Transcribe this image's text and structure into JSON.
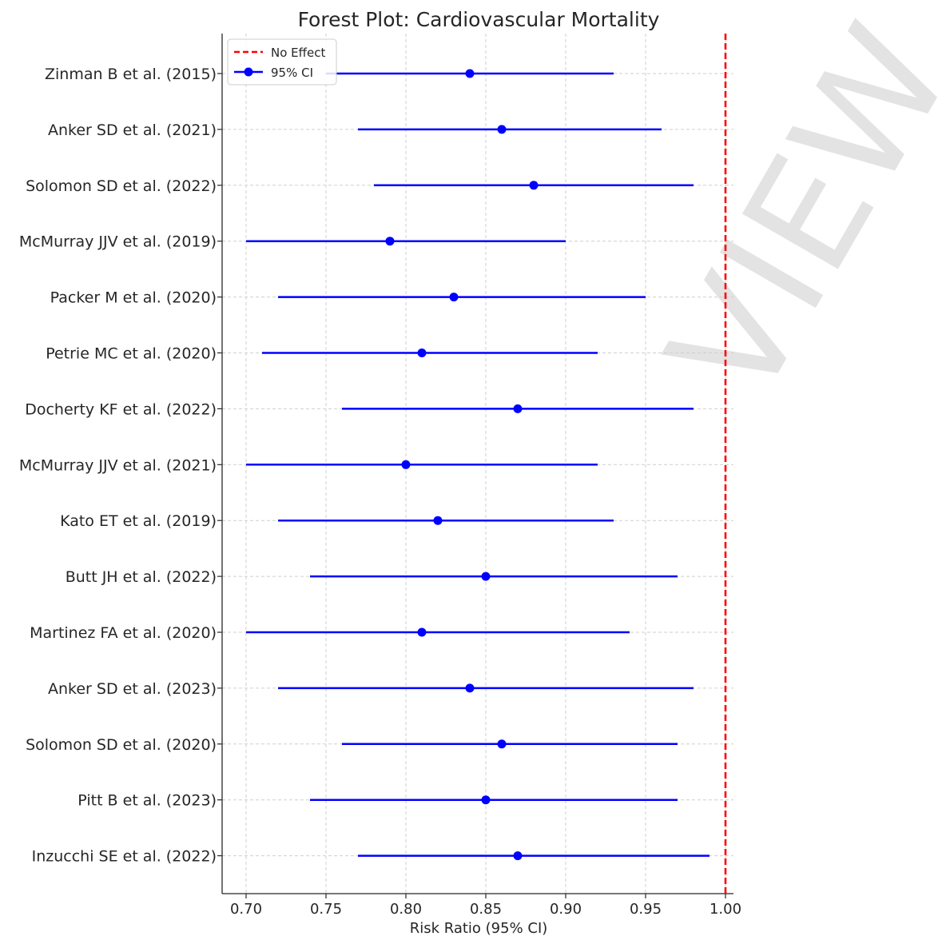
{
  "chart_data": {
    "type": "forest",
    "title": "Forest Plot: Cardiovascular Mortality",
    "xlabel": "Risk Ratio (95% CI)",
    "ylabel": "",
    "xlim": [
      0.685,
      1.005
    ],
    "xticks": [
      0.7,
      0.75,
      0.8,
      0.85,
      0.9,
      0.95,
      1.0
    ],
    "xtick_labels": [
      "0.70",
      "0.75",
      "0.80",
      "0.85",
      "0.90",
      "0.95",
      "1.00"
    ],
    "grid": true,
    "reference_line": {
      "x": 1.0,
      "label": "No Effect",
      "color": "#ff0000",
      "style": "dashed"
    },
    "legend": {
      "placement": "top-left",
      "entries": [
        {
          "label": "No Effect",
          "kind": "dashed-line",
          "color": "#ff0000"
        },
        {
          "label": "95% CI",
          "kind": "errorbar",
          "color": "#0000ff"
        }
      ]
    },
    "series": [
      {
        "color": "#0000ff",
        "studies": [
          {
            "label": "Zinman B et al. (2015)",
            "rr": 0.84,
            "lower": 0.75,
            "upper": 0.93
          },
          {
            "label": "Anker SD et al. (2021)",
            "rr": 0.86,
            "lower": 0.77,
            "upper": 0.96
          },
          {
            "label": "Solomon SD et al. (2022)",
            "rr": 0.88,
            "lower": 0.78,
            "upper": 0.98
          },
          {
            "label": "McMurray JJV et al. (2019)",
            "rr": 0.79,
            "lower": 0.7,
            "upper": 0.9
          },
          {
            "label": "Packer M et al. (2020)",
            "rr": 0.83,
            "lower": 0.72,
            "upper": 0.95
          },
          {
            "label": "Petrie MC et al. (2020)",
            "rr": 0.81,
            "lower": 0.71,
            "upper": 0.92
          },
          {
            "label": "Docherty KF et al. (2022)",
            "rr": 0.87,
            "lower": 0.76,
            "upper": 0.98
          },
          {
            "label": "McMurray JJV et al. (2021)",
            "rr": 0.8,
            "lower": 0.7,
            "upper": 0.92
          },
          {
            "label": "Kato ET et al. (2019)",
            "rr": 0.82,
            "lower": 0.72,
            "upper": 0.93
          },
          {
            "label": "Butt JH et al. (2022)",
            "rr": 0.85,
            "lower": 0.74,
            "upper": 0.97
          },
          {
            "label": "Martinez FA et al. (2020)",
            "rr": 0.81,
            "lower": 0.7,
            "upper": 0.94
          },
          {
            "label": "Anker SD et al. (2023)",
            "rr": 0.84,
            "lower": 0.72,
            "upper": 0.98
          },
          {
            "label": "Solomon SD et al. (2020)",
            "rr": 0.86,
            "lower": 0.76,
            "upper": 0.97
          },
          {
            "label": "Pitt B et al. (2023)",
            "rr": 0.85,
            "lower": 0.74,
            "upper": 0.97
          },
          {
            "label": "Inzucchi SE et al. (2022)",
            "rr": 0.87,
            "lower": 0.77,
            "upper": 0.99
          }
        ]
      }
    ]
  },
  "watermark": "VIEW"
}
